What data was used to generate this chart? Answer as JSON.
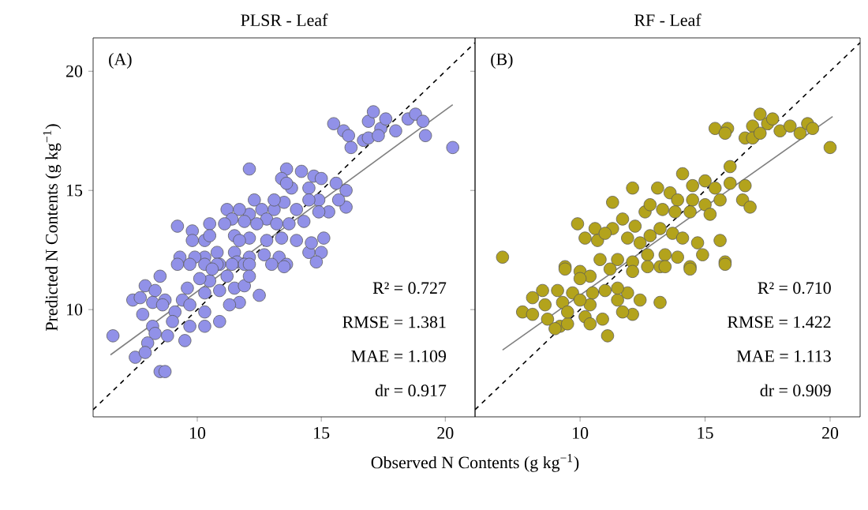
{
  "chart_data": [
    {
      "type": "scatter",
      "title": "PLSR - Leaf",
      "xlabel": "Observed N Contents (g kg$^{−1}$)",
      "ylabel": "Predicted N Contents (g kg$^{−1}$)",
      "xlim": [
        5.8,
        21.2
      ],
      "ylim": [
        5.5,
        21.4
      ],
      "xticks": [
        10,
        15,
        20
      ],
      "yticks": [
        10,
        15,
        20
      ],
      "annotations": [
        "(A)",
        "R² = 0.727",
        "RMSE = 1.381",
        "MAE = 1.109",
        "dr = 0.917"
      ],
      "series": [
        {
          "color": "#9191e8",
          "x": [
            20.3,
            15.5,
            15.9,
            16.1,
            16.2,
            16.7,
            16.9,
            17.1,
            17.4,
            17.6,
            18.0,
            18.5,
            18.8,
            19.1,
            19.2,
            16.9,
            17.3,
            12.1,
            13.6,
            14.2,
            13.4,
            13.8,
            14.7,
            15.0,
            14.5,
            15.6,
            16.0,
            16.0,
            15.7,
            15.3,
            14.9,
            14.5,
            14.0,
            12.3,
            12.1,
            11.7,
            11.2,
            12.6,
            12.8,
            13.1,
            13.5,
            11.4,
            11.9,
            12.4,
            13.2,
            13.7,
            14.3,
            14.9,
            13.6,
            13.1,
            9.2,
            9.8,
            10.5,
            11.1,
            9.8,
            10.3,
            10.8,
            11.5,
            12.1,
            12.8,
            13.4,
            14.0,
            14.5,
            15.1,
            15.0,
            14.6,
            11.5,
            12.1,
            12.7,
            13.3,
            13.6,
            10.9,
            10.3,
            9.3,
            9.9,
            11.6,
            11.9,
            10.5,
            11.7,
            9.2,
            9.7,
            10.3,
            10.8,
            11.4,
            12.1,
            13.0,
            13.5,
            14.8,
            8.5,
            7.9,
            8.3,
            7.4,
            7.7,
            8.7,
            8.2,
            9.4,
            10.3,
            10.9,
            10.5,
            10.1,
            9.6,
            11.2,
            11.5,
            11.9,
            11.7,
            11.3,
            12.5,
            12.1,
            10.6,
            9.1,
            9.7,
            9.0,
            9.7,
            10.3,
            10.9,
            10.3,
            8.2,
            8.3,
            8.8,
            8.0,
            6.6,
            7.5,
            7.9,
            8.5,
            8.7,
            8.6,
            7.8,
            9.5
          ],
          "values": [
            16.8,
            17.8,
            17.5,
            17.3,
            16.8,
            17.1,
            17.9,
            18.3,
            17.6,
            18.0,
            17.5,
            18.0,
            18.2,
            17.9,
            17.3,
            17.2,
            17.3,
            15.9,
            15.9,
            15.8,
            15.5,
            15.1,
            15.6,
            15.5,
            15.1,
            15.3,
            15.0,
            14.3,
            14.6,
            14.1,
            14.6,
            14.6,
            14.2,
            14.6,
            14.0,
            14.2,
            14.2,
            14.2,
            13.8,
            14.2,
            14.5,
            13.8,
            13.7,
            13.6,
            13.6,
            13.6,
            13.7,
            14.1,
            15.3,
            14.6,
            13.5,
            13.3,
            13.6,
            13.6,
            12.9,
            12.9,
            12.4,
            13.1,
            13.0,
            12.9,
            13.0,
            12.9,
            12.4,
            13.0,
            12.4,
            12.8,
            12.4,
            12.2,
            12.3,
            12.2,
            11.9,
            11.9,
            12.2,
            12.2,
            12.2,
            12.0,
            11.9,
            13.1,
            12.9,
            11.9,
            11.9,
            11.9,
            11.9,
            11.9,
            11.9,
            11.9,
            11.8,
            12.0,
            11.4,
            11.0,
            10.8,
            10.4,
            10.5,
            10.4,
            10.3,
            10.4,
            10.7,
            10.8,
            11.2,
            11.3,
            10.9,
            11.4,
            10.9,
            11.0,
            10.3,
            10.2,
            10.6,
            11.4,
            11.7,
            9.9,
            10.2,
            9.5,
            9.3,
            9.3,
            9.5,
            9.9,
            9.3,
            9.0,
            8.9,
            8.6,
            8.9,
            8.0,
            8.2,
            7.4,
            7.4,
            10.2,
            9.8,
            8.7
          ]
        },
        {
          "type": "line",
          "color": "#808080",
          "line_style": "solid",
          "x": [
            6.5,
            20.3
          ],
          "values": [
            8.1,
            18.6
          ]
        },
        {
          "type": "line",
          "color": "#000000",
          "line_style": "dashed",
          "x": [
            5.8,
            21.2
          ],
          "values": [
            5.8,
            21.2
          ]
        }
      ]
    },
    {
      "type": "scatter",
      "title": "RF - Leaf",
      "xlim": [
        5.8,
        21.2
      ],
      "ylim": [
        5.5,
        21.4
      ],
      "xticks": [
        10,
        15,
        20
      ],
      "yticks": [
        10,
        15,
        20
      ],
      "tick_labels": "x",
      "annotations": [
        "(B)",
        "R² = 0.710",
        "RMSE = 1.422",
        "MAE = 1.113",
        "dr = 0.909"
      ],
      "series": [
        {
          "color": "#b3a31c",
          "x": [
            20.0,
            15.4,
            15.9,
            16.6,
            16.9,
            17.2,
            17.5,
            17.7,
            18.0,
            18.4,
            18.8,
            19.1,
            19.3,
            16.9,
            17.2,
            15.8,
            16.0,
            12.1,
            11.3,
            6.9,
            14.1,
            14.5,
            15.0,
            15.4,
            16.0,
            16.6,
            16.5,
            16.8,
            13.1,
            13.6,
            13.9,
            14.5,
            15.0,
            15.6,
            15.2,
            14.4,
            13.8,
            13.3,
            12.6,
            12.8,
            12.2,
            11.7,
            11.3,
            10.6,
            9.9,
            10.2,
            10.7,
            11.0,
            11.9,
            12.4,
            12.8,
            13.2,
            13.7,
            14.1,
            14.7,
            14.9,
            15.6,
            15.8,
            13.9,
            13.4,
            12.7,
            12.1,
            11.5,
            10.8,
            9.4,
            10.0,
            14.4,
            13.2,
            9.4,
            10.4,
            11.2,
            12.1,
            12.7,
            13.4,
            14.4,
            15.8,
            8.5,
            9.1,
            9.7,
            8.1,
            7.7,
            8.1,
            8.6,
            9.3,
            10.0,
            10.5,
            11.0,
            11.5,
            11.9,
            12.4,
            13.2,
            12.1,
            11.7,
            10.2,
            10.9,
            10.4,
            8.7,
            9.2,
            9.5,
            9.0,
            10.4,
            11.1,
            11.5,
            10.0,
            9.5
          ],
          "values": [
            16.8,
            17.6,
            17.6,
            17.2,
            17.7,
            18.2,
            17.8,
            18.0,
            17.5,
            17.7,
            17.4,
            17.8,
            17.6,
            17.2,
            17.4,
            17.4,
            16.0,
            15.1,
            14.5,
            12.2,
            15.7,
            15.2,
            15.4,
            15.1,
            15.3,
            15.2,
            14.6,
            14.3,
            15.1,
            14.9,
            14.6,
            14.6,
            14.4,
            14.6,
            14.0,
            14.1,
            14.1,
            14.2,
            14.1,
            14.4,
            13.5,
            13.8,
            13.4,
            13.4,
            13.6,
            13.0,
            12.9,
            13.2,
            13.0,
            12.8,
            13.1,
            13.4,
            13.2,
            13.0,
            12.8,
            12.3,
            12.9,
            12.0,
            12.2,
            12.3,
            12.3,
            12.0,
            12.1,
            12.1,
            11.8,
            11.6,
            11.8,
            11.8,
            11.7,
            11.4,
            11.7,
            11.6,
            11.8,
            11.8,
            11.7,
            11.9,
            10.8,
            10.8,
            10.7,
            10.5,
            9.9,
            9.8,
            10.2,
            10.3,
            11.3,
            10.7,
            10.8,
            10.4,
            10.7,
            10.4,
            10.3,
            9.8,
            9.9,
            9.7,
            9.6,
            10.2,
            9.6,
            9.3,
            9.4,
            9.2,
            9.4,
            8.9,
            10.9,
            10.4,
            9.9
          ]
        },
        {
          "type": "line",
          "color": "#808080",
          "line_style": "solid",
          "x": [
            6.9,
            20.1
          ],
          "values": [
            8.3,
            18.1
          ]
        },
        {
          "type": "line",
          "color": "#000000",
          "line_style": "dashed",
          "x": [
            5.8,
            21.2
          ],
          "values": [
            5.8,
            21.2
          ]
        }
      ]
    }
  ]
}
